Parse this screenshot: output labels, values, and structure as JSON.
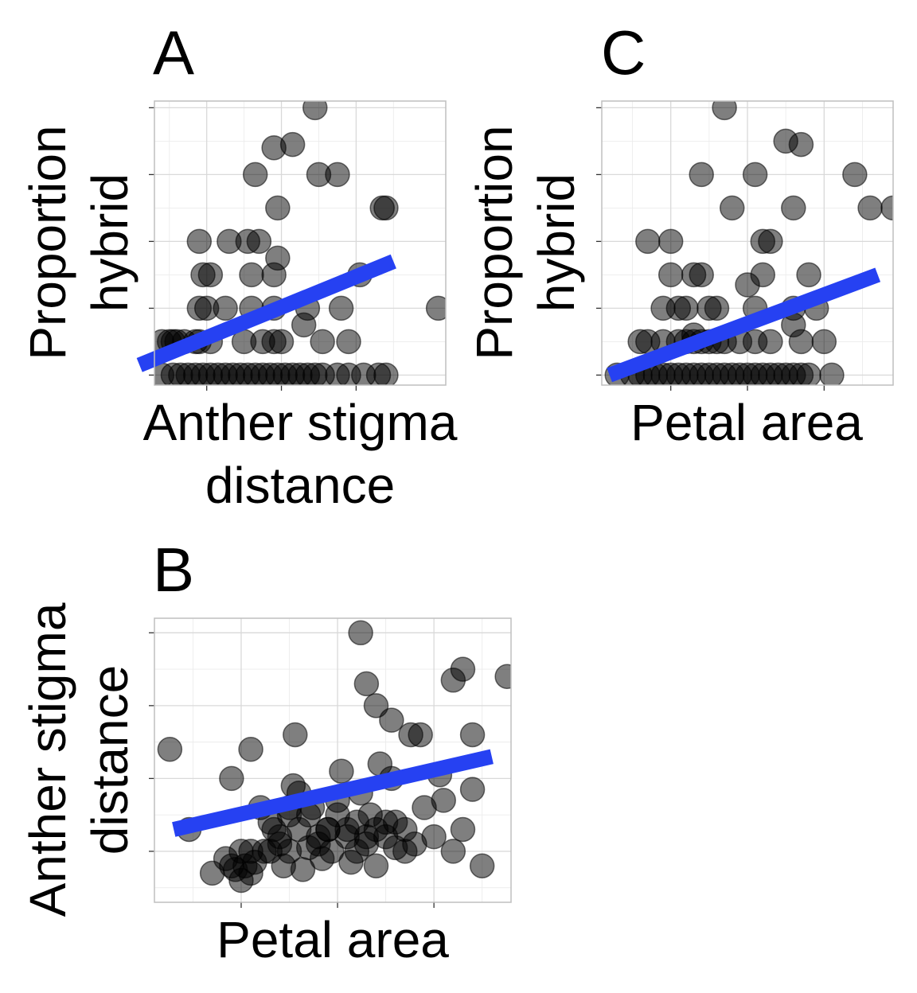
{
  "chart_data": [
    {
      "panel": "A",
      "type": "scatter",
      "xlabel": "Anther stigma distance",
      "ylabel": "Proportion hybrid",
      "xlim": [
        0.3,
        4.2
      ],
      "ylim": [
        -0.03,
        0.82
      ],
      "x_major_ticks": [
        1,
        2,
        3
      ],
      "y_major_ticks": [
        0,
        0.2,
        0.4,
        0.6,
        0.8
      ],
      "grid": true,
      "points": [
        [
          0.4,
          0.1
        ],
        [
          0.5,
          0.1
        ],
        [
          0.6,
          0.1
        ],
        [
          0.7,
          0.1
        ],
        [
          0.9,
          0.1
        ],
        [
          1.05,
          0.1
        ],
        [
          0.55,
          0.1
        ],
        [
          0.85,
          0.1
        ],
        [
          0.4,
          0
        ],
        [
          0.55,
          0
        ],
        [
          0.65,
          0
        ],
        [
          0.75,
          0
        ],
        [
          0.85,
          0
        ],
        [
          0.95,
          0
        ],
        [
          1.05,
          0
        ],
        [
          1.15,
          0
        ],
        [
          1.25,
          0
        ],
        [
          1.35,
          0
        ],
        [
          1.45,
          0
        ],
        [
          1.55,
          0
        ],
        [
          1.65,
          0
        ],
        [
          1.75,
          0
        ],
        [
          1.85,
          0
        ],
        [
          1.95,
          0
        ],
        [
          2.05,
          0
        ],
        [
          2.15,
          0
        ],
        [
          2.25,
          0
        ],
        [
          2.35,
          0
        ],
        [
          2.45,
          0
        ],
        [
          2.55,
          0
        ],
        [
          2.75,
          0
        ],
        [
          2.9,
          0
        ],
        [
          3.1,
          0
        ],
        [
          3.3,
          0
        ],
        [
          3.4,
          0
        ],
        [
          0.9,
          0.4
        ],
        [
          1.3,
          0.4
        ],
        [
          1.55,
          0.4
        ],
        [
          1.7,
          0.4
        ],
        [
          0.95,
          0.3
        ],
        [
          1.05,
          0.3
        ],
        [
          1.6,
          0.3
        ],
        [
          1.95,
          0.35
        ],
        [
          1.9,
          0.3
        ],
        [
          0.9,
          0.2
        ],
        [
          1.0,
          0.2
        ],
        [
          1.25,
          0.2
        ],
        [
          1.6,
          0.2
        ],
        [
          1.9,
          0.2
        ],
        [
          2.35,
          0.2
        ],
        [
          2.8,
          0.2
        ],
        [
          1.9,
          0.1
        ],
        [
          1.5,
          0.1
        ],
        [
          1.75,
          0.1
        ],
        [
          2.0,
          0.1
        ],
        [
          2.55,
          0.1
        ],
        [
          2.9,
          0.1
        ],
        [
          2.3,
          0.15
        ],
        [
          3.05,
          0.3
        ],
        [
          3.4,
          0.5
        ],
        [
          3.35,
          0.5
        ],
        [
          1.65,
          0.6
        ],
        [
          2.5,
          0.6
        ],
        [
          2.75,
          0.6
        ],
        [
          1.9,
          0.68
        ],
        [
          2.15,
          0.69
        ],
        [
          2.45,
          0.8
        ],
        [
          1.95,
          0.5
        ],
        [
          4.1,
          0.2
        ]
      ],
      "fit_line": [
        [
          0.1,
          0.03
        ],
        [
          3.5,
          0.34
        ]
      ]
    },
    {
      "panel": "C",
      "type": "scatter",
      "xlabel": "Petal area",
      "ylabel": "Proportion hybrid",
      "xlim": [
        0.55,
        2.45
      ],
      "ylim": [
        -0.03,
        0.82
      ],
      "x_major_ticks": [
        1,
        1.5,
        2
      ],
      "y_major_ticks": [
        0,
        0.2,
        0.4,
        0.6,
        0.8
      ],
      "grid": true,
      "points": [
        [
          0.65,
          0
        ],
        [
          0.75,
          0
        ],
        [
          0.8,
          0
        ],
        [
          0.85,
          0
        ],
        [
          0.9,
          0
        ],
        [
          0.95,
          0
        ],
        [
          1.0,
          0
        ],
        [
          1.05,
          0
        ],
        [
          1.1,
          0
        ],
        [
          1.15,
          0
        ],
        [
          1.2,
          0
        ],
        [
          1.25,
          0
        ],
        [
          1.3,
          0
        ],
        [
          1.35,
          0
        ],
        [
          1.4,
          0
        ],
        [
          1.45,
          0
        ],
        [
          1.5,
          0
        ],
        [
          1.55,
          0
        ],
        [
          1.6,
          0
        ],
        [
          1.65,
          0
        ],
        [
          1.7,
          0
        ],
        [
          1.75,
          0
        ],
        [
          1.8,
          0
        ],
        [
          1.85,
          0
        ],
        [
          1.9,
          0
        ],
        [
          2.05,
          0
        ],
        [
          0.8,
          0.1
        ],
        [
          0.85,
          0.1
        ],
        [
          0.95,
          0.1
        ],
        [
          1.05,
          0.1
        ],
        [
          1.1,
          0.1
        ],
        [
          1.15,
          0.1
        ],
        [
          1.2,
          0.1
        ],
        [
          1.25,
          0.1
        ],
        [
          1.3,
          0.1
        ],
        [
          1.35,
          0.1
        ],
        [
          1.45,
          0.1
        ],
        [
          1.55,
          0.1
        ],
        [
          1.65,
          0.1
        ],
        [
          1.85,
          0.1
        ],
        [
          2.0,
          0.1
        ],
        [
          1.8,
          0.15
        ],
        [
          1.15,
          0.12
        ],
        [
          0.95,
          0.2
        ],
        [
          1.05,
          0.2
        ],
        [
          1.1,
          0.2
        ],
        [
          1.25,
          0.2
        ],
        [
          1.3,
          0.2
        ],
        [
          1.55,
          0.2
        ],
        [
          1.95,
          0.2
        ],
        [
          1.8,
          0.2
        ],
        [
          1.0,
          0.3
        ],
        [
          1.15,
          0.3
        ],
        [
          1.2,
          0.3
        ],
        [
          1.5,
          0.27
        ],
        [
          1.6,
          0.3
        ],
        [
          1.9,
          0.3
        ],
        [
          0.85,
          0.4
        ],
        [
          1.0,
          0.4
        ],
        [
          1.6,
          0.4
        ],
        [
          1.65,
          0.4
        ],
        [
          1.8,
          0.5
        ],
        [
          1.4,
          0.5
        ],
        [
          2.3,
          0.5
        ],
        [
          1.2,
          0.6
        ],
        [
          1.55,
          0.6
        ],
        [
          2.2,
          0.6
        ],
        [
          1.75,
          0.7
        ],
        [
          1.85,
          0.69
        ],
        [
          1.35,
          0.8
        ],
        [
          2.45,
          0.5
        ]
      ],
      "fit_line": [
        [
          0.6,
          0.0
        ],
        [
          2.35,
          0.3
        ]
      ]
    },
    {
      "panel": "B",
      "type": "scatter",
      "xlabel": "Petal area",
      "ylabel": "Anther stigma distance",
      "xlim": [
        0.55,
        2.4
      ],
      "ylim": [
        0.3,
        4.2
      ],
      "x_major_ticks": [
        1,
        1.5,
        2
      ],
      "y_major_ticks": [
        1,
        2,
        3,
        4
      ],
      "grid": true,
      "points": [
        [
          0.63,
          2.4
        ],
        [
          0.73,
          1.3
        ],
        [
          0.85,
          0.7
        ],
        [
          0.92,
          0.9
        ],
        [
          0.95,
          0.8
        ],
        [
          0.97,
          0.75
        ],
        [
          1.0,
          1.0
        ],
        [
          1.02,
          0.8
        ],
        [
          1.05,
          0.7
        ],
        [
          1.0,
          0.6
        ],
        [
          1.07,
          0.85
        ],
        [
          1.12,
          1.0
        ],
        [
          1.17,
          1.3
        ],
        [
          1.2,
          1.1
        ],
        [
          1.22,
          0.8
        ],
        [
          1.25,
          1.5
        ],
        [
          1.27,
          1.9
        ],
        [
          1.3,
          1.8
        ],
        [
          1.32,
          0.75
        ],
        [
          1.35,
          1.05
        ],
        [
          1.37,
          1.6
        ],
        [
          1.4,
          1.2
        ],
        [
          1.42,
          0.9
        ],
        [
          1.45,
          1.3
        ],
        [
          1.47,
          1.0
        ],
        [
          1.5,
          1.7
        ],
        [
          1.52,
          2.1
        ],
        [
          1.55,
          1.3
        ],
        [
          1.57,
          0.85
        ],
        [
          1.6,
          1.0
        ],
        [
          1.62,
          1.8
        ],
        [
          1.65,
          1.2
        ],
        [
          1.67,
          1.5
        ],
        [
          1.7,
          0.8
        ],
        [
          1.72,
          2.2
        ],
        [
          1.75,
          1.4
        ],
        [
          1.78,
          2.0
        ],
        [
          1.8,
          1.4
        ],
        [
          1.85,
          1.0
        ],
        [
          1.9,
          1.1
        ],
        [
          1.95,
          1.6
        ],
        [
          2.0,
          1.2
        ],
        [
          2.05,
          1.7
        ],
        [
          2.1,
          1.0
        ],
        [
          2.15,
          1.3
        ],
        [
          2.2,
          1.85
        ],
        [
          1.88,
          2.6
        ],
        [
          1.93,
          2.6
        ],
        [
          2.03,
          2.05
        ],
        [
          2.25,
          0.8
        ],
        [
          0.95,
          2.0
        ],
        [
          1.05,
          2.4
        ],
        [
          1.1,
          1.6
        ],
        [
          1.15,
          1.4
        ],
        [
          1.2,
          1.2
        ],
        [
          1.25,
          1.6
        ],
        [
          1.3,
          1.3
        ],
        [
          1.35,
          1.5
        ],
        [
          1.4,
          1.1
        ],
        [
          1.45,
          1.3
        ],
        [
          1.5,
          1.5
        ],
        [
          1.55,
          1.2
        ],
        [
          1.6,
          1.4
        ],
        [
          1.65,
          1.1
        ],
        [
          1.7,
          1.3
        ],
        [
          1.75,
          1.2
        ],
        [
          1.8,
          1.05
        ],
        [
          1.85,
          1.3
        ],
        [
          1.28,
          2.6
        ],
        [
          1.65,
          3.3
        ],
        [
          1.7,
          3.0
        ],
        [
          1.78,
          2.8
        ],
        [
          1.62,
          4.0
        ],
        [
          2.38,
          3.4
        ],
        [
          2.2,
          2.6
        ],
        [
          2.1,
          3.35
        ],
        [
          2.15,
          3.5
        ],
        [
          1.05,
          1.0
        ],
        [
          1.15,
          1.0
        ],
        [
          1.25,
          1.0
        ]
      ],
      "fit_line": [
        [
          0.65,
          1.3
        ],
        [
          2.3,
          2.3
        ]
      ]
    }
  ]
}
